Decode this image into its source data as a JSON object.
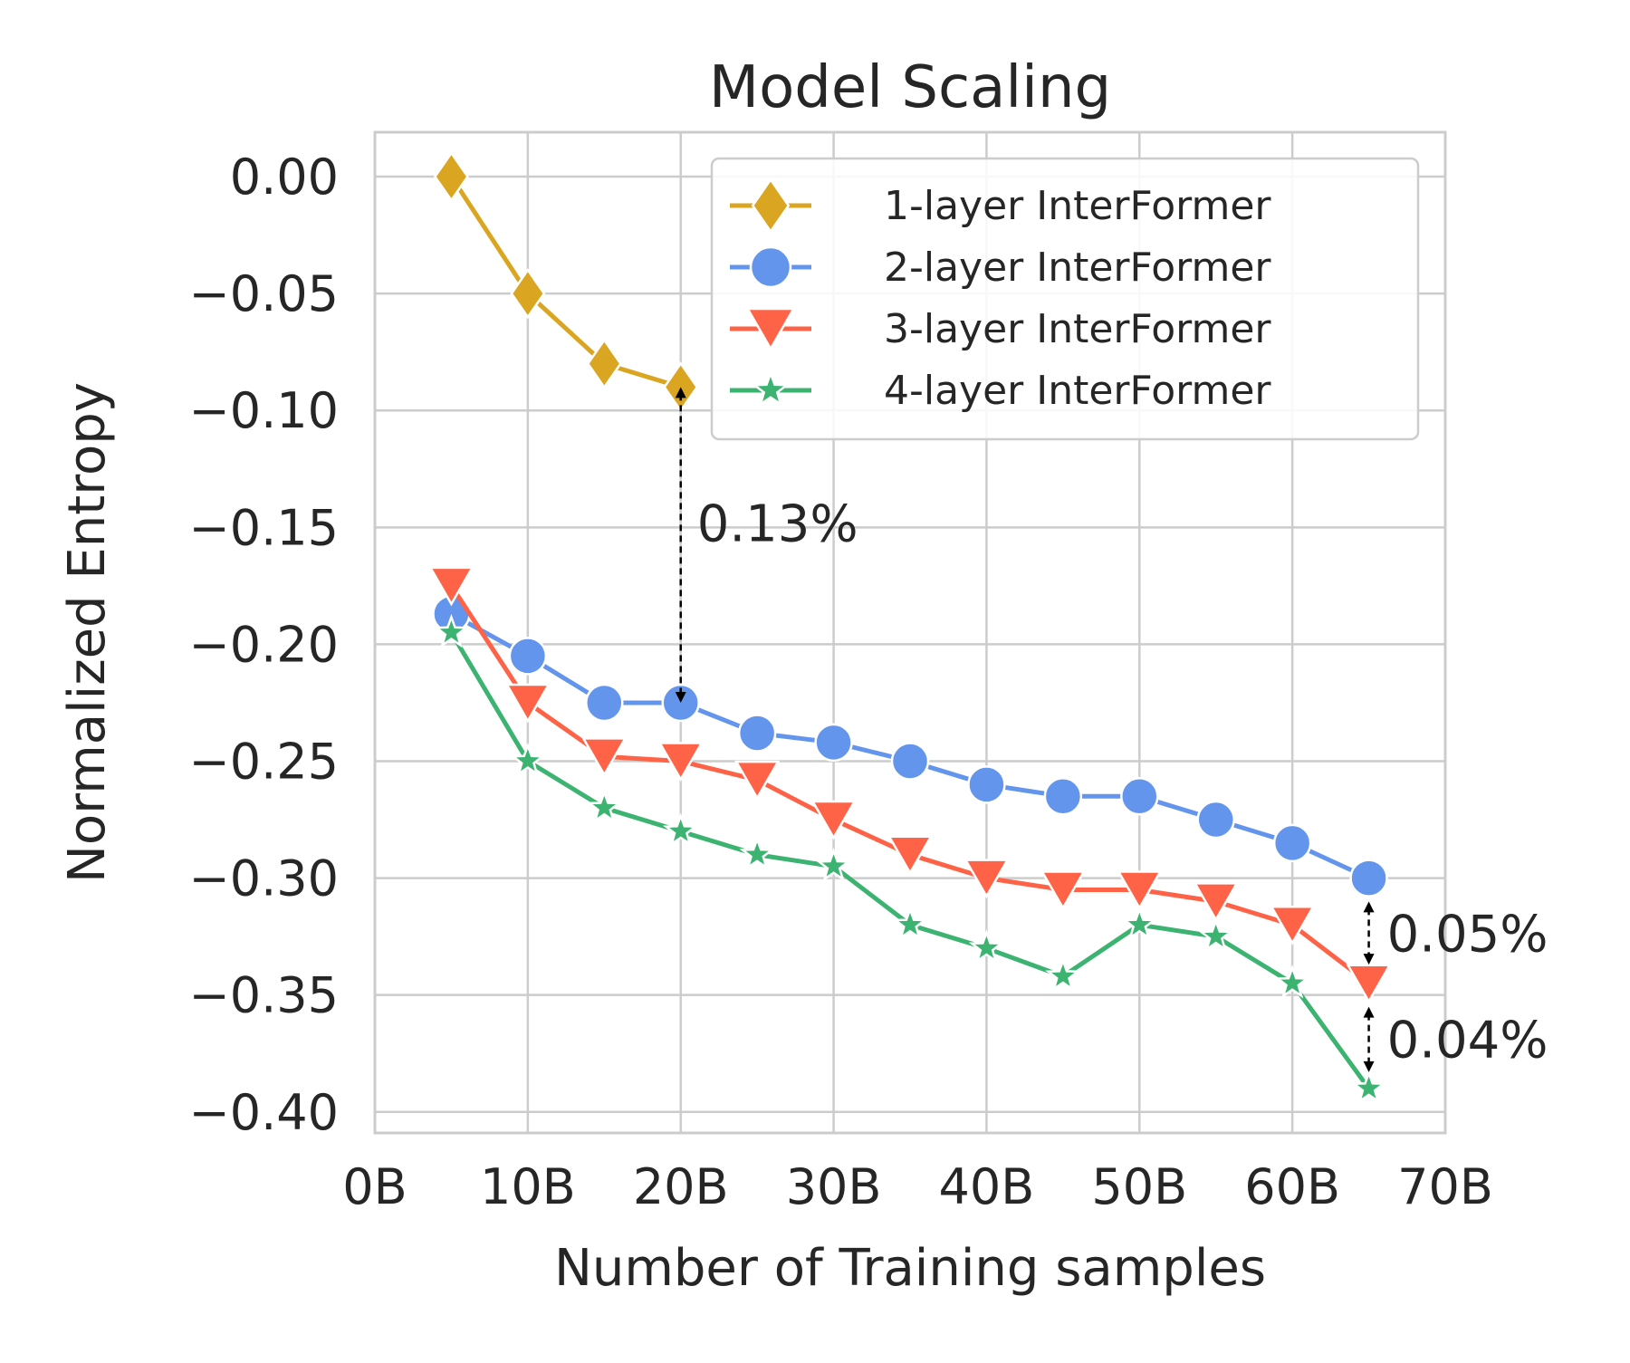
{
  "chart_data": {
    "type": "line",
    "title": "Model Scaling",
    "xlabel": "Number of Training samples",
    "ylabel": "Normalized Entropy",
    "xlim": [
      0,
      70
    ],
    "ylim": [
      -0.409,
      0.019
    ],
    "x_ticks": [
      0,
      10,
      20,
      30,
      40,
      50,
      60,
      70
    ],
    "x_tick_labels": [
      "0B",
      "10B",
      "20B",
      "30B",
      "40B",
      "50B",
      "60B",
      "70B"
    ],
    "y_ticks": [
      0.0,
      -0.05,
      -0.1,
      -0.15,
      -0.2,
      -0.25,
      -0.3,
      -0.35,
      -0.4
    ],
    "y_tick_labels": [
      "0.00",
      "−0.05",
      "−0.10",
      "−0.15",
      "−0.20",
      "−0.25",
      "−0.30",
      "−0.35",
      "−0.40"
    ],
    "grid": true,
    "legend_position": "top-right",
    "series": [
      {
        "name": "1-layer InterFormer",
        "color": "#DAA520",
        "marker": "diamond",
        "x": [
          5,
          10,
          15,
          20
        ],
        "y": [
          0.0,
          -0.05,
          -0.08,
          -0.09
        ]
      },
      {
        "name": "2-layer InterFormer",
        "color": "#6495ED",
        "marker": "circle",
        "x": [
          5,
          10,
          15,
          20,
          25,
          30,
          35,
          40,
          45,
          50,
          55,
          60,
          65
        ],
        "y": [
          -0.187,
          -0.205,
          -0.225,
          -0.225,
          -0.238,
          -0.242,
          -0.25,
          -0.26,
          -0.265,
          -0.265,
          -0.275,
          -0.285,
          -0.3
        ]
      },
      {
        "name": "3-layer InterFormer",
        "color": "#FF6347",
        "marker": "triangle-down",
        "x": [
          5,
          10,
          15,
          20,
          25,
          30,
          35,
          40,
          45,
          50,
          55,
          60,
          65
        ],
        "y": [
          -0.175,
          -0.225,
          -0.248,
          -0.25,
          -0.258,
          -0.275,
          -0.29,
          -0.3,
          -0.305,
          -0.305,
          -0.31,
          -0.32,
          -0.345
        ]
      },
      {
        "name": "4-layer InterFormer",
        "color": "#3CB371",
        "marker": "star",
        "x": [
          5,
          10,
          15,
          20,
          25,
          30,
          35,
          40,
          45,
          50,
          55,
          60,
          65
        ],
        "y": [
          -0.195,
          -0.25,
          -0.27,
          -0.28,
          -0.29,
          -0.295,
          -0.32,
          -0.33,
          -0.342,
          -0.32,
          -0.325,
          -0.345,
          -0.39
        ]
      }
    ],
    "annotations": [
      {
        "text": "0.13%",
        "x": 20,
        "y_from": -0.09,
        "y_to": -0.225
      },
      {
        "text": "0.05%",
        "x": 65,
        "y_from": -0.31,
        "y_to": -0.337
      },
      {
        "text": "0.04%",
        "x": 65,
        "y_from": -0.355,
        "y_to": -0.383
      }
    ]
  }
}
